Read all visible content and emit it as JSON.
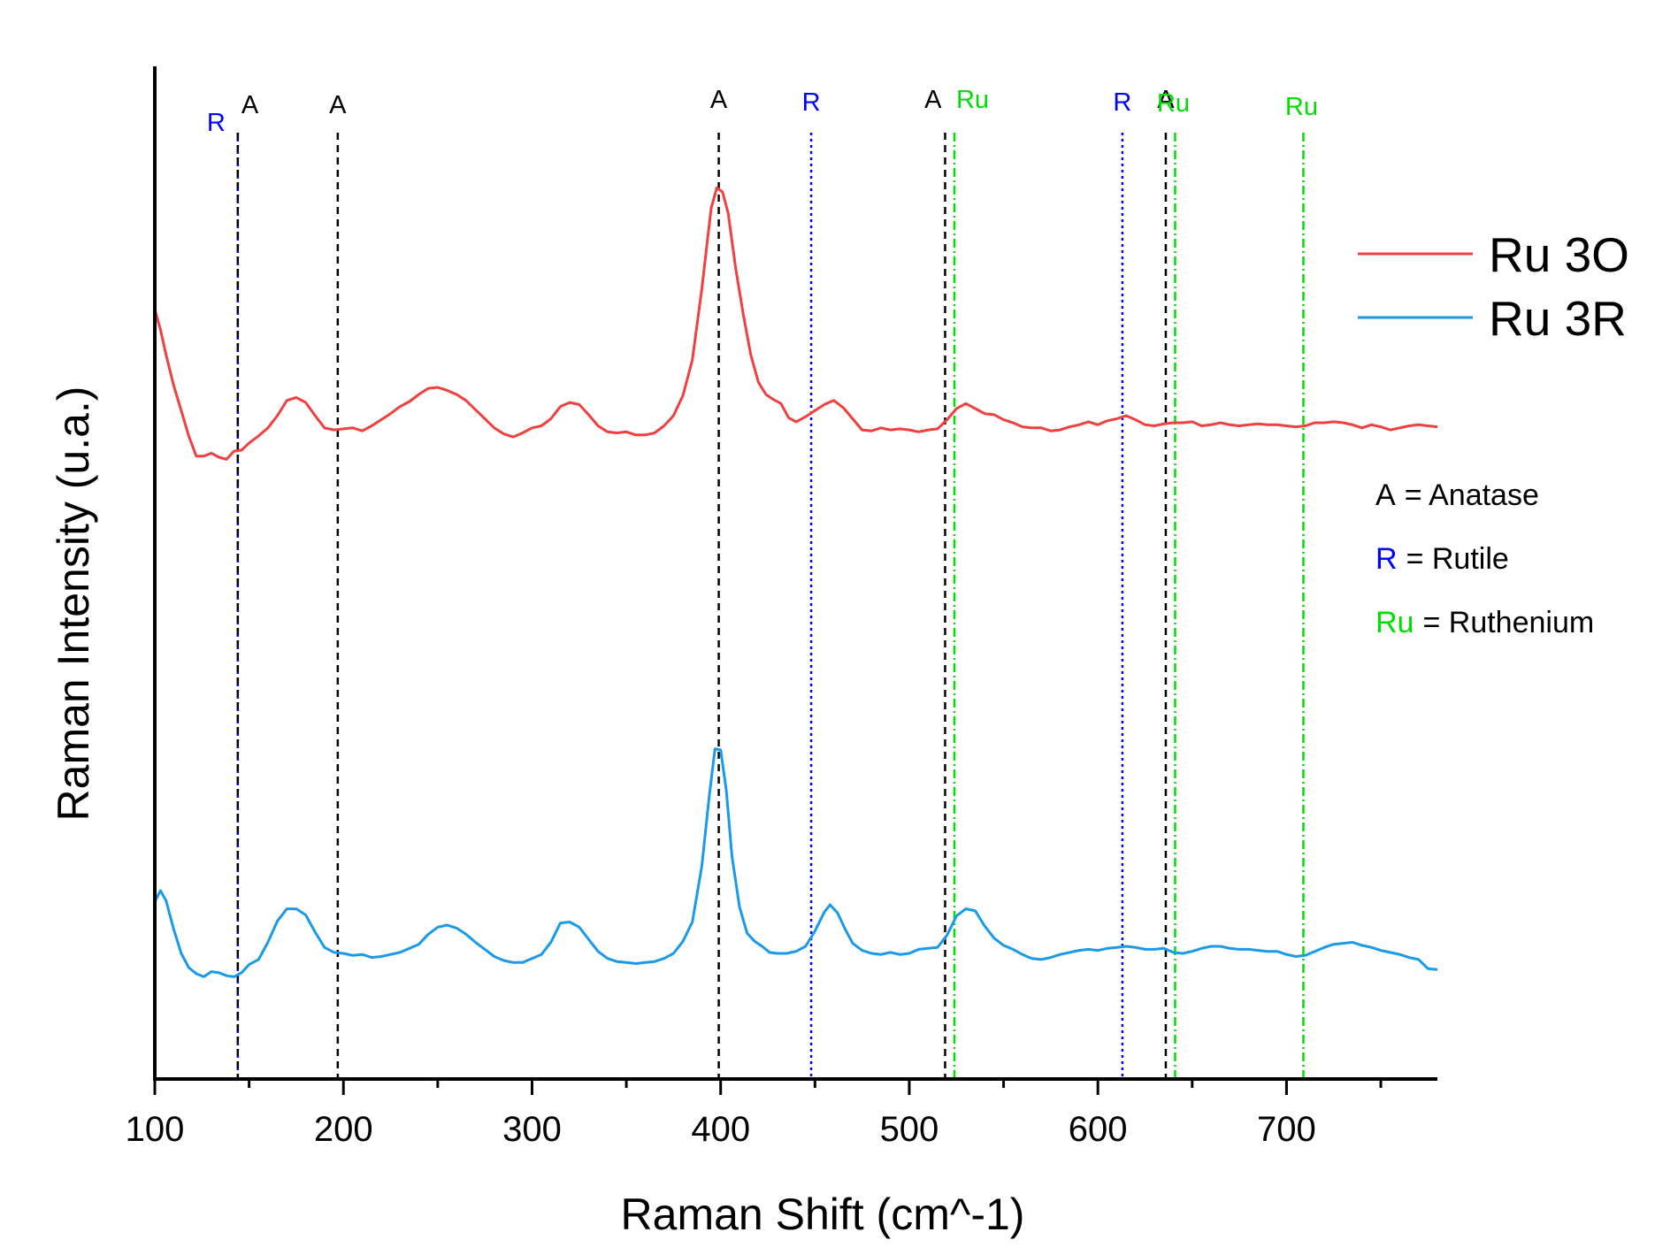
{
  "chart_data": {
    "type": "line",
    "title": "",
    "xlabel": "Raman Shift (cm^-1)",
    "ylabel": "Raman Intensity (u.a.)",
    "xlim": [
      100,
      780
    ],
    "ylim": [
      0,
      100
    ],
    "x_ticks": [
      100,
      200,
      300,
      400,
      500,
      600,
      700
    ],
    "y_ticks": [],
    "grid": false,
    "legend_position": "top-right",
    "series": [
      {
        "name": "Ru 3O",
        "color": "#f04040",
        "points": [
          [
            100,
            76
          ],
          [
            103,
            74
          ],
          [
            106,
            71.5
          ],
          [
            110,
            68.5
          ],
          [
            114,
            66
          ],
          [
            118,
            63.5
          ],
          [
            122,
            61.5
          ],
          [
            126,
            61.5
          ],
          [
            130,
            61.8
          ],
          [
            134,
            61.4
          ],
          [
            138,
            61.2
          ],
          [
            142,
            62
          ],
          [
            146,
            62.1
          ],
          [
            150,
            62.8
          ],
          [
            155,
            63.5
          ],
          [
            160,
            64.3
          ],
          [
            165,
            65.5
          ],
          [
            170,
            67
          ],
          [
            175,
            67.3
          ],
          [
            180,
            66.8
          ],
          [
            185,
            65.5
          ],
          [
            190,
            64.3
          ],
          [
            195,
            64.1
          ],
          [
            200,
            64.2
          ],
          [
            205,
            64.3
          ],
          [
            210,
            64
          ],
          [
            215,
            64.5
          ],
          [
            220,
            65.1
          ],
          [
            225,
            65.7
          ],
          [
            230,
            66.4
          ],
          [
            235,
            66.9
          ],
          [
            240,
            67.6
          ],
          [
            245,
            68.2
          ],
          [
            250,
            68.3
          ],
          [
            255,
            68
          ],
          [
            260,
            67.6
          ],
          [
            265,
            67
          ],
          [
            270,
            66.1
          ],
          [
            275,
            65.2
          ],
          [
            280,
            64.3
          ],
          [
            285,
            63.7
          ],
          [
            290,
            63.4
          ],
          [
            295,
            63.8
          ],
          [
            300,
            64.3
          ],
          [
            305,
            64.5
          ],
          [
            310,
            65.2
          ],
          [
            315,
            66.4
          ],
          [
            320,
            66.8
          ],
          [
            325,
            66.6
          ],
          [
            330,
            65.6
          ],
          [
            335,
            64.5
          ],
          [
            340,
            63.9
          ],
          [
            345,
            63.8
          ],
          [
            350,
            63.9
          ],
          [
            355,
            63.6
          ],
          [
            360,
            63.6
          ],
          [
            365,
            63.8
          ],
          [
            370,
            64.5
          ],
          [
            375,
            65.5
          ],
          [
            380,
            67.5
          ],
          [
            385,
            71
          ],
          [
            390,
            78
          ],
          [
            395,
            86
          ],
          [
            398,
            88
          ],
          [
            401,
            87.6
          ],
          [
            404,
            85.5
          ],
          [
            408,
            80
          ],
          [
            412,
            75.5
          ],
          [
            416,
            71.5
          ],
          [
            420,
            68.8
          ],
          [
            424,
            67.6
          ],
          [
            428,
            67.1
          ],
          [
            432,
            66.7
          ],
          [
            436,
            65.3
          ],
          [
            440,
            64.9
          ],
          [
            445,
            65.4
          ],
          [
            450,
            66
          ],
          [
            455,
            66.6
          ],
          [
            460,
            67
          ],
          [
            465,
            66.3
          ],
          [
            470,
            65.2
          ],
          [
            475,
            64.1
          ],
          [
            480,
            64
          ],
          [
            485,
            64.3
          ],
          [
            490,
            64.1
          ],
          [
            495,
            64.2
          ],
          [
            500,
            64.1
          ],
          [
            505,
            63.9
          ],
          [
            510,
            64.1
          ],
          [
            515,
            64.2
          ],
          [
            520,
            65.1
          ],
          [
            525,
            66.2
          ],
          [
            530,
            66.7
          ],
          [
            535,
            66.2
          ],
          [
            540,
            65.7
          ],
          [
            545,
            65.6
          ],
          [
            550,
            65.1
          ],
          [
            555,
            64.8
          ],
          [
            560,
            64.4
          ],
          [
            565,
            64.3
          ],
          [
            570,
            64.3
          ],
          [
            575,
            64
          ],
          [
            580,
            64.1
          ],
          [
            585,
            64.4
          ],
          [
            590,
            64.6
          ],
          [
            595,
            64.9
          ],
          [
            600,
            64.6
          ],
          [
            605,
            65
          ],
          [
            610,
            65.2
          ],
          [
            615,
            65.5
          ],
          [
            620,
            65.1
          ],
          [
            625,
            64.6
          ],
          [
            630,
            64.5
          ],
          [
            635,
            64.7
          ],
          [
            640,
            64.8
          ],
          [
            645,
            64.8
          ],
          [
            650,
            64.9
          ],
          [
            655,
            64.5
          ],
          [
            660,
            64.6
          ],
          [
            665,
            64.8
          ],
          [
            670,
            64.6
          ],
          [
            675,
            64.5
          ],
          [
            680,
            64.6
          ],
          [
            685,
            64.7
          ],
          [
            690,
            64.6
          ],
          [
            695,
            64.6
          ],
          [
            700,
            64.5
          ],
          [
            705,
            64.4
          ],
          [
            710,
            64.5
          ],
          [
            715,
            64.8
          ],
          [
            720,
            64.8
          ],
          [
            725,
            64.9
          ],
          [
            730,
            64.8
          ],
          [
            735,
            64.6
          ],
          [
            740,
            64.3
          ],
          [
            745,
            64.6
          ],
          [
            750,
            64.4
          ],
          [
            755,
            64.1
          ],
          [
            760,
            64.3
          ],
          [
            765,
            64.5
          ],
          [
            770,
            64.6
          ],
          [
            775,
            64.5
          ],
          [
            780,
            64.4
          ]
        ]
      },
      {
        "name": "Ru 3R",
        "color": "#1a9ae8",
        "points": [
          [
            100,
            17.5
          ],
          [
            103,
            18.6
          ],
          [
            106,
            17.6
          ],
          [
            110,
            14.8
          ],
          [
            114,
            12.4
          ],
          [
            118,
            11
          ],
          [
            122,
            10.4
          ],
          [
            126,
            10.1
          ],
          [
            130,
            10.6
          ],
          [
            134,
            10.5
          ],
          [
            138,
            10.2
          ],
          [
            142,
            10.1
          ],
          [
            146,
            10.5
          ],
          [
            150,
            11.3
          ],
          [
            155,
            11.8
          ],
          [
            160,
            13.5
          ],
          [
            165,
            15.6
          ],
          [
            170,
            16.8
          ],
          [
            175,
            16.8
          ],
          [
            180,
            16.2
          ],
          [
            185,
            14.5
          ],
          [
            190,
            13
          ],
          [
            195,
            12.5
          ],
          [
            200,
            12.4
          ],
          [
            205,
            12.2
          ],
          [
            210,
            12.3
          ],
          [
            215,
            12
          ],
          [
            220,
            12.1
          ],
          [
            225,
            12.3
          ],
          [
            230,
            12.5
          ],
          [
            235,
            12.9
          ],
          [
            240,
            13.3
          ],
          [
            245,
            14.3
          ],
          [
            250,
            15
          ],
          [
            255,
            15.2
          ],
          [
            260,
            14.9
          ],
          [
            265,
            14.3
          ],
          [
            270,
            13.5
          ],
          [
            275,
            12.8
          ],
          [
            280,
            12.1
          ],
          [
            285,
            11.7
          ],
          [
            290,
            11.5
          ],
          [
            295,
            11.5
          ],
          [
            300,
            11.9
          ],
          [
            305,
            12.3
          ],
          [
            310,
            13.5
          ],
          [
            315,
            15.4
          ],
          [
            320,
            15.5
          ],
          [
            325,
            15
          ],
          [
            330,
            13.8
          ],
          [
            335,
            12.6
          ],
          [
            340,
            11.9
          ],
          [
            345,
            11.6
          ],
          [
            350,
            11.5
          ],
          [
            355,
            11.4
          ],
          [
            360,
            11.5
          ],
          [
            365,
            11.6
          ],
          [
            370,
            11.9
          ],
          [
            375,
            12.4
          ],
          [
            380,
            13.6
          ],
          [
            385,
            15.5
          ],
          [
            390,
            21
          ],
          [
            394,
            28
          ],
          [
            397,
            32.6
          ],
          [
            400,
            32.5
          ],
          [
            403,
            28.5
          ],
          [
            406,
            22
          ],
          [
            410,
            17
          ],
          [
            414,
            14.4
          ],
          [
            418,
            13.6
          ],
          [
            422,
            13.1
          ],
          [
            426,
            12.5
          ],
          [
            430,
            12.4
          ],
          [
            435,
            12.4
          ],
          [
            440,
            12.6
          ],
          [
            445,
            13.1
          ],
          [
            450,
            14.6
          ],
          [
            455,
            16.5
          ],
          [
            458,
            17.2
          ],
          [
            462,
            16.4
          ],
          [
            466,
            14.8
          ],
          [
            470,
            13.4
          ],
          [
            475,
            12.7
          ],
          [
            480,
            12.4
          ],
          [
            485,
            12.3
          ],
          [
            490,
            12.5
          ],
          [
            495,
            12.3
          ],
          [
            500,
            12.4
          ],
          [
            505,
            12.8
          ],
          [
            510,
            12.9
          ],
          [
            515,
            13
          ],
          [
            520,
            14.2
          ],
          [
            525,
            16.1
          ],
          [
            530,
            16.8
          ],
          [
            535,
            16.6
          ],
          [
            540,
            15.1
          ],
          [
            545,
            13.9
          ],
          [
            550,
            13.2
          ],
          [
            555,
            12.8
          ],
          [
            560,
            12.3
          ],
          [
            565,
            11.9
          ],
          [
            570,
            11.8
          ],
          [
            575,
            12
          ],
          [
            580,
            12.3
          ],
          [
            585,
            12.5
          ],
          [
            590,
            12.7
          ],
          [
            595,
            12.8
          ],
          [
            600,
            12.7
          ],
          [
            605,
            12.9
          ],
          [
            610,
            13
          ],
          [
            615,
            13.1
          ],
          [
            620,
            13
          ],
          [
            625,
            12.8
          ],
          [
            630,
            12.8
          ],
          [
            635,
            12.9
          ],
          [
            640,
            12.5
          ],
          [
            645,
            12.4
          ],
          [
            650,
            12.6
          ],
          [
            655,
            12.9
          ],
          [
            660,
            13.1
          ],
          [
            665,
            13.1
          ],
          [
            670,
            12.9
          ],
          [
            675,
            12.8
          ],
          [
            680,
            12.8
          ],
          [
            685,
            12.7
          ],
          [
            690,
            12.6
          ],
          [
            695,
            12.6
          ],
          [
            700,
            12.3
          ],
          [
            705,
            12.1
          ],
          [
            710,
            12.2
          ],
          [
            715,
            12.6
          ],
          [
            720,
            13
          ],
          [
            725,
            13.3
          ],
          [
            730,
            13.4
          ],
          [
            735,
            13.5
          ],
          [
            740,
            13.2
          ],
          [
            745,
            13
          ],
          [
            750,
            12.7
          ],
          [
            755,
            12.5
          ],
          [
            760,
            12.3
          ],
          [
            765,
            12
          ],
          [
            770,
            11.8
          ],
          [
            775,
            10.9
          ],
          [
            780,
            10.8
          ]
        ]
      }
    ],
    "reference_lines": [
      {
        "x": 144,
        "label": "R",
        "phase": "Rutile",
        "style": "dotted",
        "color": "#0000ff"
      },
      {
        "x": 144,
        "label": "A",
        "phase": "Anatase",
        "style": "dashed",
        "color": "#000000"
      },
      {
        "x": 197,
        "label": "A",
        "phase": "Anatase",
        "style": "dashed",
        "color": "#000000"
      },
      {
        "x": 399,
        "label": "A",
        "phase": "Anatase",
        "style": "dashed",
        "color": "#000000"
      },
      {
        "x": 448,
        "label": "R",
        "phase": "Rutile",
        "style": "dotted",
        "color": "#0000ff"
      },
      {
        "x": 519,
        "label": "A",
        "phase": "Anatase",
        "style": "dashed",
        "color": "#000000"
      },
      {
        "x": 523,
        "label": "Ru",
        "phase": "Ruthenium",
        "style": "dashdot",
        "color": "#00dd00"
      },
      {
        "x": 613,
        "label": "R",
        "phase": "Rutile",
        "style": "dotted",
        "color": "#0000ff"
      },
      {
        "x": 636,
        "label": "A",
        "phase": "Anatase",
        "style": "dashed",
        "color": "#000000"
      },
      {
        "x": 640,
        "label": "Ru",
        "phase": "Ruthenium",
        "style": "dashdot",
        "color": "#00dd00"
      },
      {
        "x": 708,
        "label": "Ru",
        "phase": "Ruthenium",
        "style": "dashdot",
        "color": "#00dd00"
      }
    ],
    "phase_key": [
      {
        "symbol": "A",
        "text": "= Anatase",
        "color": "#000000"
      },
      {
        "symbol": "R",
        "text": "= Rutile",
        "color": "#0000ff"
      },
      {
        "symbol": "Ru",
        "text": "= Ruthenium",
        "color": "#00dd00"
      }
    ]
  }
}
